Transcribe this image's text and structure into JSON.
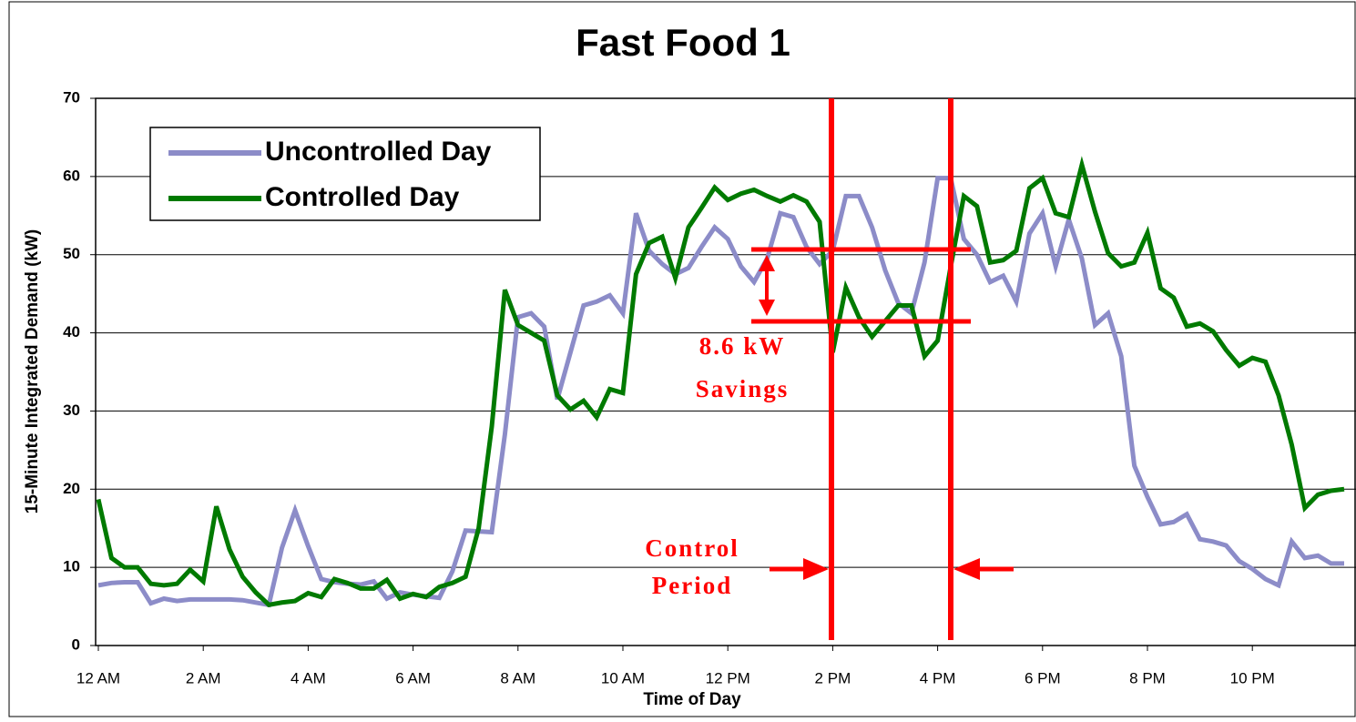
{
  "chart_data": {
    "type": "line",
    "title": "Fast Food 1",
    "xlabel": "Time of Day",
    "ylabel": "15-Minute Integrated Demand (kW)",
    "categories": [
      "12 AM",
      null,
      null,
      null,
      null,
      null,
      null,
      null,
      "2 AM",
      null,
      null,
      null,
      null,
      null,
      null,
      null,
      "4 AM",
      null,
      null,
      null,
      null,
      null,
      null,
      null,
      "6 AM",
      null,
      null,
      null,
      null,
      null,
      null,
      null,
      "8 AM",
      null,
      null,
      null,
      null,
      null,
      null,
      null,
      "10 AM",
      null,
      null,
      null,
      null,
      null,
      null,
      null,
      "12 PM",
      null,
      null,
      null,
      null,
      null,
      null,
      null,
      "2 PM",
      null,
      null,
      null,
      null,
      null,
      null,
      null,
      "4 PM",
      null,
      null,
      null,
      null,
      null,
      null,
      null,
      "6 PM",
      null,
      null,
      null,
      null,
      null,
      null,
      null,
      "8 PM",
      null,
      null,
      null,
      null,
      null,
      null,
      null,
      "10 PM",
      null,
      null,
      null,
      null,
      null,
      null,
      null
    ],
    "series": [
      {
        "name": "Uncontrolled Day",
        "color": "#8c8cc8",
        "values": [
          7.7,
          8.0,
          8.1,
          8.1,
          5.4,
          6.0,
          5.7,
          5.9,
          5.9,
          5.9,
          5.9,
          5.8,
          5.5,
          5.2,
          12.5,
          17.3,
          12.7,
          8.5,
          8.1,
          7.9,
          7.8,
          8.2,
          6.0,
          6.8,
          6.5,
          6.3,
          6.1,
          9.5,
          14.7,
          14.6,
          14.5,
          27,
          42,
          42.5,
          40.8,
          31.5,
          37.5,
          43.5,
          44,
          44.8,
          42.5,
          55.3,
          50.5,
          48.8,
          47.5,
          48.3,
          51,
          53.5,
          52,
          48.5,
          46.5,
          49.5,
          55.3,
          54.8,
          51,
          48.8,
          50.5,
          57.5,
          57.5,
          53.5,
          48,
          43.8,
          42.5,
          49,
          59.8,
          59.8,
          52,
          50,
          46.5,
          47.3,
          44,
          52.7,
          55.3,
          48.5,
          54.5,
          49.5,
          41,
          42.5,
          37,
          23,
          19,
          15.5,
          15.8,
          16.8,
          13.6,
          13.3,
          12.8,
          10.8,
          9.8,
          8.5,
          7.7,
          13.3,
          11.2,
          11.5,
          10.5,
          10.5
        ]
      },
      {
        "name": "Controlled Day",
        "color": "#007a00",
        "values": [
          18.7,
          11.2,
          10,
          10,
          7.9,
          7.7,
          7.9,
          9.7,
          8.2,
          17.8,
          12.3,
          8.8,
          6.8,
          5.2,
          5.5,
          5.7,
          6.7,
          6.2,
          8.5,
          8,
          7.3,
          7.3,
          8.4,
          6,
          6.6,
          6.2,
          7.5,
          8,
          8.8,
          15,
          28,
          45.5,
          41,
          40,
          39,
          32,
          30.2,
          31.3,
          29.2,
          32.8,
          32.3,
          47.5,
          51.5,
          52.3,
          47,
          53.5,
          56,
          58.6,
          57,
          57.8,
          58.3,
          57.5,
          56.8,
          57.6,
          56.8,
          54.2,
          37.5,
          45.8,
          42,
          39.5,
          41.5,
          43.5,
          43.5,
          37,
          39,
          48.5,
          57.5,
          56.2,
          49,
          49.3,
          50.5,
          58.5,
          59.8,
          55.3,
          54.8,
          61.5,
          55.5,
          50.2,
          48.5,
          49,
          52.8,
          45.7,
          44.5,
          40.8,
          41.2,
          40.2,
          37.8,
          35.8,
          36.8,
          36.3,
          32,
          25.7,
          17.6,
          19.3,
          19.8,
          20
        ]
      }
    ],
    "ylim": [
      0,
      70
    ],
    "yticks": [
      0,
      10,
      20,
      30,
      40,
      50,
      60,
      70
    ],
    "grid": true,
    "legend": "upper left",
    "annotations": [
      "8.6 kW",
      "Savings",
      "Control",
      "Period"
    ]
  }
}
